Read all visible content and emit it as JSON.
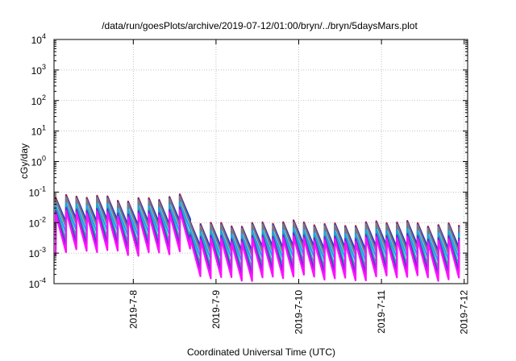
{
  "chart_data": {
    "type": "line",
    "title": "/data/run/goesPlots/archive/2019-07-12/01:00/bryn/../bryn/5daysMars.plot",
    "xlabel": "Coordinated Universal Time (UTC)",
    "ylabel": "cGy/day",
    "y_scale": "log",
    "ylim": [
      0.0001,
      10000
    ],
    "y_ticks": [
      {
        "value": 0.0001,
        "base": "10",
        "exp": "-4"
      },
      {
        "value": 0.001,
        "base": "10",
        "exp": "-3"
      },
      {
        "value": 0.01,
        "base": "10",
        "exp": "-2"
      },
      {
        "value": 0.1,
        "base": "10",
        "exp": "-1"
      },
      {
        "value": 1,
        "base": "10",
        "exp": "0"
      },
      {
        "value": 10,
        "base": "10",
        "exp": "1"
      },
      {
        "value": 100,
        "base": "10",
        "exp": "2"
      },
      {
        "value": 1000,
        "base": "10",
        "exp": "3"
      },
      {
        "value": 10000,
        "base": "10",
        "exp": "4"
      }
    ],
    "xlim": [
      "2019-07-07 01:00",
      "2019-07-12 01:00"
    ],
    "x_ticks": [
      "2019-7-8",
      "2019-7-9",
      "2019-7-10",
      "2019-7-11",
      "2019-7-12"
    ],
    "grid": true,
    "sawtooth": {
      "period_hours": 3,
      "phase_peak_hour": 0.5,
      "step_time": "2019-07-08 16:00",
      "before": {
        "peak_range": [
          0.045,
          0.085
        ]
      },
      "after": {
        "peak_range": [
          0.007,
          0.012
        ]
      }
    },
    "series": [
      {
        "color": "#e0101a",
        "peak_scale": 1.0,
        "trough_ratio": 0.15
      },
      {
        "color": "#1c3fd6",
        "peak_scale": 0.92,
        "trough_ratio": 0.17
      },
      {
        "color": "#7a7a7a",
        "peak_scale": 0.85,
        "trough_ratio": 0.13
      },
      {
        "color": "#1aa0ff",
        "peak_scale": 0.55,
        "trough_ratio": 0.13
      },
      {
        "color": "#1db3a0",
        "peak_scale": 0.45,
        "trough_ratio": 0.09
      },
      {
        "color": "#6a2bd8",
        "peak_scale": 0.38,
        "trough_ratio": 0.07
      },
      {
        "color": "#ff10ff",
        "peak_scale": 0.3,
        "trough_ratio": 0.055
      }
    ]
  }
}
